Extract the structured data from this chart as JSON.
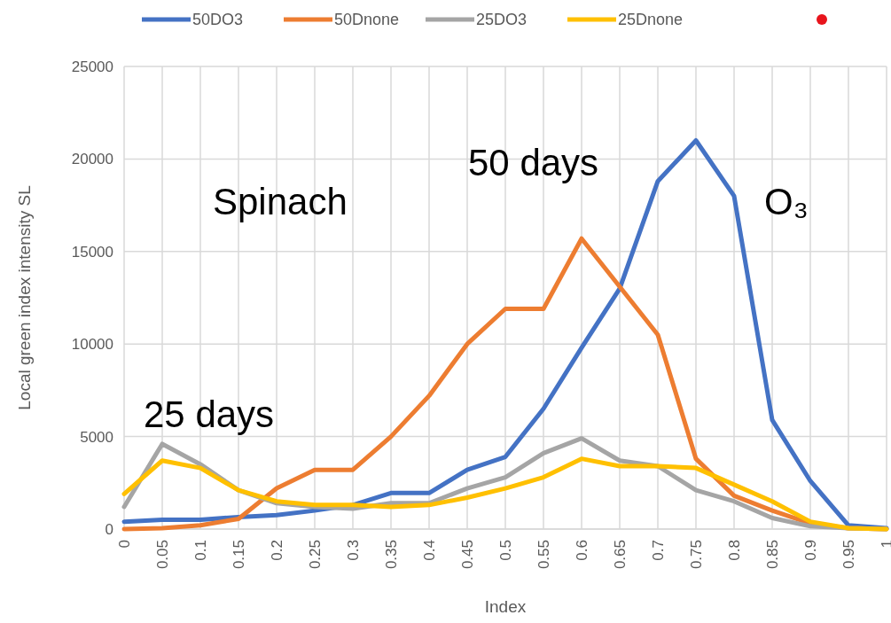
{
  "chart_data": {
    "type": "line",
    "xlabel": "Index",
    "ylabel": "Local green index intensity SL",
    "categories": [
      "0",
      "0.05",
      "0.1",
      "0.15",
      "0.2",
      "0.25",
      "0.3",
      "0.35",
      "0.4",
      "0.45",
      "0.5",
      "0.55",
      "0.6",
      "0.65",
      "0.7",
      "0.75",
      "0.8",
      "0.85",
      "0.9",
      "0.95",
      "1"
    ],
    "series": [
      {
        "name": "50DO3",
        "color": "#4472c4",
        "values": [
          400,
          500,
          500,
          650,
          750,
          1000,
          1300,
          1950,
          1950,
          3200,
          3900,
          6500,
          9800,
          13000,
          18800,
          21000,
          18000,
          5900,
          2600,
          200,
          50
        ]
      },
      {
        "name": "50Dnone",
        "color": "#ed7d31",
        "values": [
          0,
          50,
          200,
          550,
          2200,
          3200,
          3200,
          5000,
          7200,
          10000,
          11900,
          11900,
          15700,
          13100,
          10500,
          3800,
          1800,
          1000,
          300,
          50,
          0
        ]
      },
      {
        "name": "25DO3",
        "color": "#a5a5a5",
        "values": [
          1200,
          4600,
          3500,
          2100,
          1400,
          1200,
          1100,
          1400,
          1400,
          2200,
          2800,
          4100,
          4900,
          3700,
          3400,
          2100,
          1500,
          600,
          150,
          50,
          0
        ]
      },
      {
        "name": "25Dnone",
        "color": "#ffc000",
        "values": [
          1900,
          3700,
          3300,
          2100,
          1500,
          1300,
          1300,
          1200,
          1300,
          1700,
          2200,
          2800,
          3800,
          3400,
          3400,
          3300,
          2400,
          1500,
          400,
          50,
          0
        ]
      }
    ],
    "ylim": [
      0,
      25000
    ],
    "yticks": [
      0,
      5000,
      10000,
      15000,
      20000,
      25000
    ],
    "grid": true,
    "legend": "top",
    "annotations": [
      "Spinach",
      "50 days",
      "O₃",
      "25 days"
    ]
  }
}
